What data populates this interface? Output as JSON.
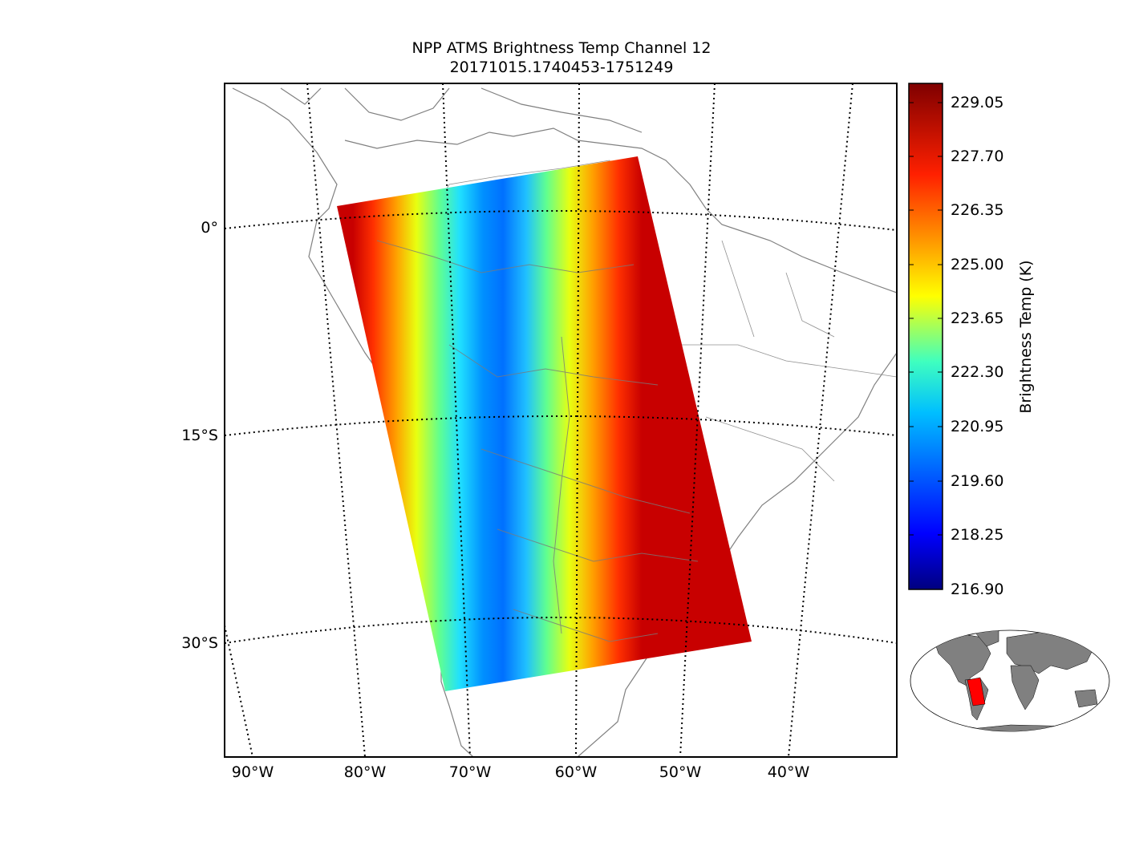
{
  "title": {
    "line1": "NPP ATMS Brightness Temp Channel 12",
    "line2": "20171015.1740453-1751249"
  },
  "map": {
    "projection": "polyconic",
    "region": "South America",
    "lat_labels": [
      "0°",
      "15°S",
      "30°S"
    ],
    "lon_labels": [
      "90°W",
      "80°W",
      "70°W",
      "60°W",
      "50°W",
      "40°W"
    ],
    "graticule_style": "dotted",
    "coastline_color": "#808080"
  },
  "swath": {
    "satellite": "NPP",
    "instrument": "ATMS",
    "channel": 12,
    "pattern": "cold (blue) near nadir, warm (red) toward scan edges"
  },
  "colorbar": {
    "label": "Brightness Temp (K)",
    "ticks": [
      "229.05",
      "227.70",
      "226.35",
      "225.00",
      "223.65",
      "222.30",
      "220.95",
      "219.60",
      "218.25",
      "216.90"
    ],
    "min": 216.9,
    "max": 229.5,
    "colormap": "jet",
    "colors": [
      "#00007f",
      "#0000ff",
      "#007fff",
      "#00ffff",
      "#7fff7f",
      "#ffff00",
      "#ff7f00",
      "#ff0000",
      "#7f0000"
    ]
  },
  "inset": {
    "description": "world map locator",
    "land_color": "#808080",
    "highlight_color": "#ff0000"
  }
}
